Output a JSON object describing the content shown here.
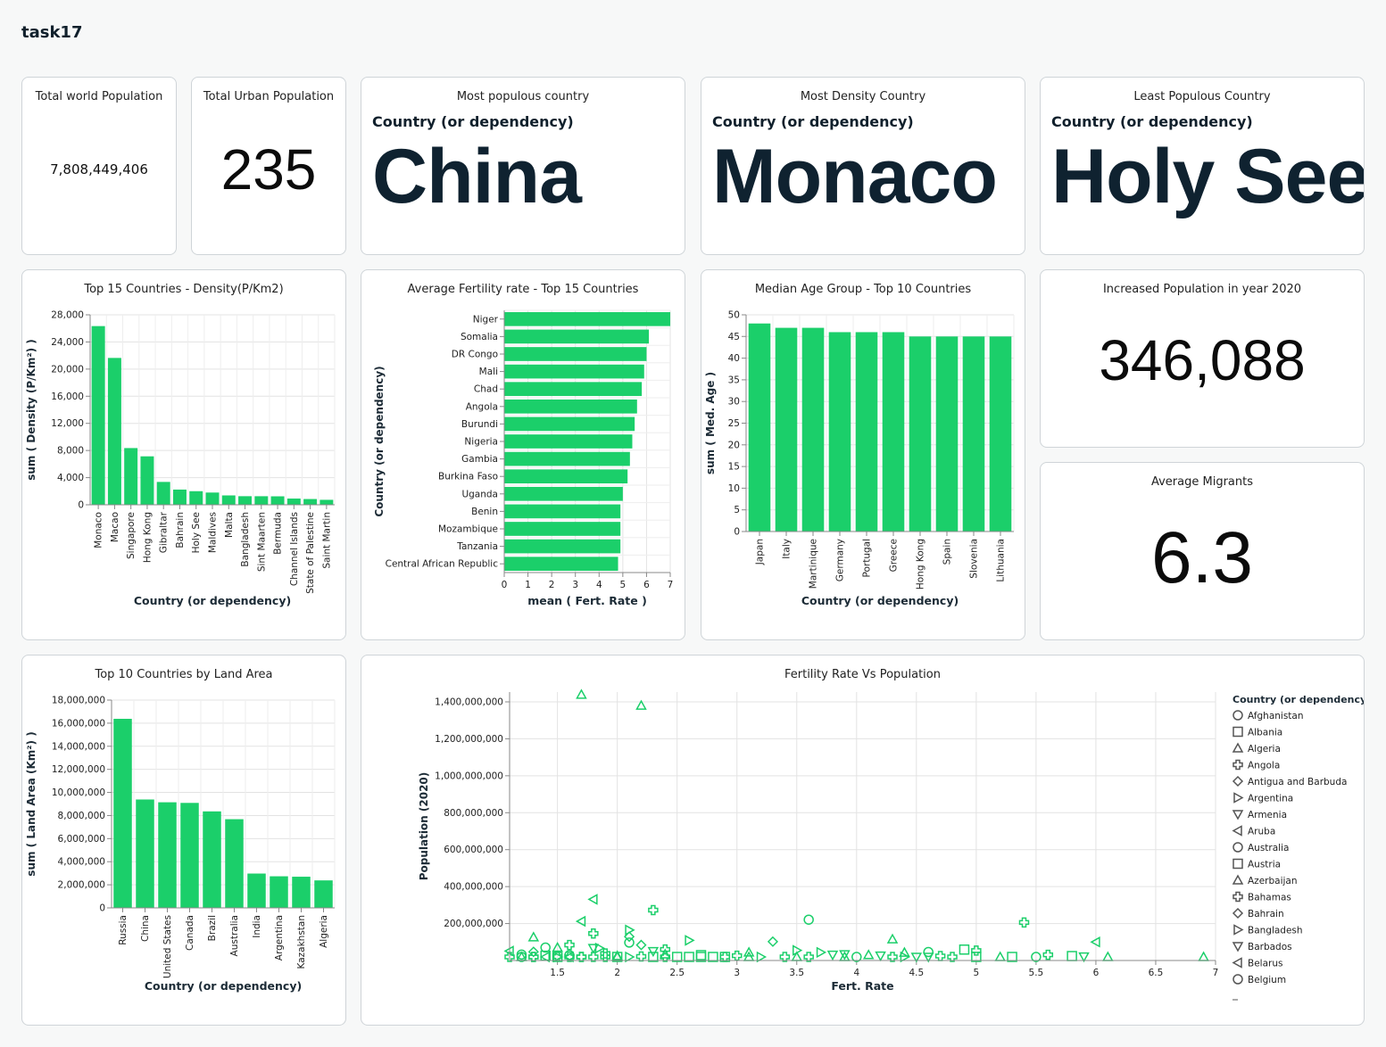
{
  "page": {
    "title": "task17",
    "accent": "#1bcf6a"
  },
  "kpis": {
    "world_population": {
      "title": "Total world Population",
      "value": "7,808,449,406"
    },
    "urban_population": {
      "title": "Total Urban Population",
      "value": "235"
    },
    "most_populous": {
      "title": "Most populous country",
      "field": "Country (or dependency)",
      "value": "China"
    },
    "most_dense": {
      "title": "Most Density Country",
      "field": "Country (or dependency)",
      "value": "Monaco"
    },
    "least_populous": {
      "title": "Least Populous Country",
      "field": "Country (or dependency)",
      "value": "Holy See"
    },
    "increased_population": {
      "title": "Increased Population in year 2020",
      "value": "346,088"
    },
    "average_migrants": {
      "title": "Average Migrants",
      "value": "6.3"
    }
  },
  "chart_data": [
    {
      "id": "density",
      "type": "bar",
      "title": "Top 15 Countries - Density(P/Km2)",
      "xlabel": "Country (or dependency)",
      "ylabel": "sum ( Density (P/Km²) )",
      "ylim": [
        0,
        28000
      ],
      "yticks": [
        0,
        4000,
        8000,
        12000,
        16000,
        20000,
        24000,
        28000
      ],
      "ytick_labels": [
        "0",
        "4,000",
        "8,000",
        "12,000",
        "16,000",
        "20,000",
        "24,000",
        "28,000"
      ],
      "categories": [
        "Monaco",
        "Macao",
        "Singapore",
        "Hong Kong",
        "Gibraltar",
        "Bahrain",
        "Holy See",
        "Maldives",
        "Malta",
        "Bangladesh",
        "Sint Maarten",
        "Bermuda",
        "Channel Islands",
        "State of Palestine",
        "Saint Martin"
      ],
      "values": [
        26337,
        21645,
        8358,
        7140,
        3369,
        2239,
        2003,
        1802,
        1380,
        1265,
        1261,
        1246,
        915,
        847,
        730
      ],
      "grid": true
    },
    {
      "id": "fertility",
      "type": "bar",
      "orientation": "horizontal",
      "title": "Average Fertility rate - Top 15 Countries",
      "xlabel": "mean ( Fert. Rate )",
      "ylabel": "Country (or dependency)",
      "xlim": [
        0,
        7
      ],
      "xticks": [
        0,
        1,
        2,
        3,
        4,
        5,
        6,
        7
      ],
      "categories": [
        "Niger",
        "Somalia",
        "DR Congo",
        "Mali",
        "Chad",
        "Angola",
        "Burundi",
        "Nigeria",
        "Gambia",
        "Burkina Faso",
        "Uganda",
        "Benin",
        "Mozambique",
        "Tanzania",
        "Central African Republic"
      ],
      "values": [
        7.0,
        6.1,
        6.0,
        5.9,
        5.8,
        5.6,
        5.5,
        5.4,
        5.3,
        5.2,
        5.0,
        4.9,
        4.9,
        4.9,
        4.8
      ],
      "grid": true
    },
    {
      "id": "median_age",
      "type": "bar",
      "title": "Median Age Group - Top 10  Countries",
      "xlabel": "Country (or dependency)",
      "ylabel": "sum ( Med. Age )",
      "ylim": [
        0,
        50
      ],
      "yticks": [
        0,
        5,
        10,
        15,
        20,
        25,
        30,
        35,
        40,
        45,
        50
      ],
      "categories": [
        "Japan",
        "Italy",
        "Martinique",
        "Germany",
        "Portugal",
        "Greece",
        "Hong Kong",
        "Spain",
        "Slovenia",
        "Lithuania"
      ],
      "values": [
        48,
        47,
        47,
        46,
        46,
        46,
        45,
        45,
        45,
        45
      ],
      "grid": true
    },
    {
      "id": "land_area",
      "type": "bar",
      "title": "Top 10 Countries by Land Area",
      "xlabel": "Country (or dependency)",
      "ylabel": "sum ( Land Area (Km²) )",
      "ylim": [
        0,
        18000000
      ],
      "yticks": [
        0,
        2000000,
        4000000,
        6000000,
        8000000,
        10000000,
        12000000,
        14000000,
        16000000,
        18000000
      ],
      "ytick_labels": [
        "0",
        "2,000,000",
        "4,000,000",
        "6,000,000",
        "8,000,000",
        "10,000,000",
        "12,000,000",
        "14,000,000",
        "16,000,000",
        "18,000,000"
      ],
      "categories": [
        "Russia",
        "China",
        "United States",
        "Canada",
        "Brazil",
        "Australia",
        "India",
        "Argentina",
        "Kazakhstan",
        "Algeria"
      ],
      "values": [
        16376870,
        9388211,
        9147420,
        9093510,
        8358140,
        7682300,
        2973190,
        2736690,
        2699700,
        2381740
      ],
      "grid": true
    },
    {
      "id": "fert_vs_pop",
      "type": "scatter",
      "title": "Fertility Rate Vs Population",
      "xlabel": "Fert. Rate",
      "ylabel": "Population (2020)",
      "xlim": [
        1.1,
        7.0
      ],
      "ylim": [
        0,
        1400000000
      ],
      "xticks": [
        1.5,
        2,
        2.5,
        3,
        3.5,
        4,
        4.5,
        5,
        5.5,
        6,
        6.5,
        7
      ],
      "xtick_labels": [
        "1.5",
        "2",
        "2.5",
        "3",
        "3.5",
        "4",
        "4.5",
        "5",
        "5.5",
        "6",
        "6.5",
        "7"
      ],
      "yticks": [
        200000000,
        400000000,
        600000000,
        800000000,
        1000000000,
        1200000000,
        1400000000
      ],
      "ytick_labels": [
        "200,000,000",
        "400,000,000",
        "600,000,000",
        "800,000,000",
        "1,000,000,000",
        "1,200,000,000",
        "1,400,000,000"
      ],
      "grid": true,
      "legend_position": "right",
      "legend_title": "Country (or dependency)",
      "legend": [
        {
          "name": "Afghanistan",
          "shape": "circle"
        },
        {
          "name": "Albania",
          "shape": "square"
        },
        {
          "name": "Algeria",
          "shape": "triangle-up"
        },
        {
          "name": "Angola",
          "shape": "cross"
        },
        {
          "name": "Antigua and Barbuda",
          "shape": "diamond"
        },
        {
          "name": "Argentina",
          "shape": "triangle-right"
        },
        {
          "name": "Armenia",
          "shape": "triangle-down"
        },
        {
          "name": "Aruba",
          "shape": "triangle-left"
        },
        {
          "name": "Australia",
          "shape": "circle"
        },
        {
          "name": "Austria",
          "shape": "square"
        },
        {
          "name": "Azerbaijan",
          "shape": "triangle-up"
        },
        {
          "name": "Bahamas",
          "shape": "cross"
        },
        {
          "name": "Bahrain",
          "shape": "diamond"
        },
        {
          "name": "Bangladesh",
          "shape": "triangle-right"
        },
        {
          "name": "Barbados",
          "shape": "triangle-down"
        },
        {
          "name": "Belarus",
          "shape": "triangle-left"
        },
        {
          "name": "Belgium",
          "shape": "circle"
        }
      ],
      "points": [
        {
          "x": 1.7,
          "y": 1439000000,
          "shape": "triangle-up"
        },
        {
          "x": 2.2,
          "y": 1380000000,
          "shape": "triangle-up"
        },
        {
          "x": 1.8,
          "y": 331000000,
          "shape": "triangle-left"
        },
        {
          "x": 2.3,
          "y": 273000000,
          "shape": "cross"
        },
        {
          "x": 3.6,
          "y": 221000000,
          "shape": "circle"
        },
        {
          "x": 5.4,
          "y": 206000000,
          "shape": "cross"
        },
        {
          "x": 1.7,
          "y": 212000000,
          "shape": "triangle-left"
        },
        {
          "x": 2.1,
          "y": 165000000,
          "shape": "triangle-right"
        },
        {
          "x": 1.8,
          "y": 146000000,
          "shape": "cross"
        },
        {
          "x": 2.1,
          "y": 129000000,
          "shape": "diamond"
        },
        {
          "x": 4.3,
          "y": 115000000,
          "shape": "triangle-up"
        },
        {
          "x": 6.0,
          "y": 100000000,
          "shape": "triangle-left"
        },
        {
          "x": 1.3,
          "y": 126000000,
          "shape": "triangle-up"
        },
        {
          "x": 2.6,
          "y": 109000000,
          "shape": "triangle-right"
        },
        {
          "x": 3.3,
          "y": 102000000,
          "shape": "diamond"
        },
        {
          "x": 2.1,
          "y": 97000000,
          "shape": "circle"
        },
        {
          "x": 1.6,
          "y": 84000000,
          "shape": "cross"
        },
        {
          "x": 2.2,
          "y": 84000000,
          "shape": "diamond"
        },
        {
          "x": 1.4,
          "y": 70000000,
          "shape": "circle"
        },
        {
          "x": 1.5,
          "y": 70000000,
          "shape": "triangle-up"
        },
        {
          "x": 1.8,
          "y": 67000000,
          "shape": "triangle-down"
        },
        {
          "x": 1.85,
          "y": 67000000,
          "shape": "triangle-right"
        },
        {
          "x": 4.9,
          "y": 59000000,
          "shape": "square"
        },
        {
          "x": 3.5,
          "y": 55000000,
          "shape": "triangle-right"
        },
        {
          "x": 5.0,
          "y": 54000000,
          "shape": "cross"
        },
        {
          "x": 2.4,
          "y": 60000000,
          "shape": "cross"
        },
        {
          "x": 1.1,
          "y": 51000000,
          "shape": "triangle-left"
        },
        {
          "x": 4.6,
          "y": 46000000,
          "shape": "circle"
        },
        {
          "x": 3.7,
          "y": 44000000,
          "shape": "triangle-right"
        },
        {
          "x": 1.3,
          "y": 47000000,
          "shape": "diamond"
        },
        {
          "x": 2.3,
          "y": 50000000,
          "shape": "triangle-down"
        },
        {
          "x": 4.4,
          "y": 43000000,
          "shape": "triangle-up"
        },
        {
          "x": 3.1,
          "y": 44000000,
          "shape": "triangle-up"
        },
        {
          "x": 1.9,
          "y": 38000000,
          "shape": "cross"
        },
        {
          "x": 3.9,
          "y": 33000000,
          "shape": "triangle-down"
        },
        {
          "x": 3.8,
          "y": 31000000,
          "shape": "triangle-down"
        },
        {
          "x": 4.1,
          "y": 30000000,
          "shape": "triangle-up"
        },
        {
          "x": 2.4,
          "y": 34000000,
          "shape": "triangle-up"
        },
        {
          "x": 2.7,
          "y": 29000000,
          "shape": "square"
        },
        {
          "x": 5.6,
          "y": 31000000,
          "shape": "cross"
        },
        {
          "x": 1.2,
          "y": 32000000,
          "shape": "circle"
        },
        {
          "x": 1.6,
          "y": 29000000,
          "shape": "circle"
        },
        {
          "x": 4.2,
          "y": 26000000,
          "shape": "triangle-down"
        },
        {
          "x": 2.0,
          "y": 25000000,
          "shape": "triangle-up"
        },
        {
          "x": 1.4,
          "y": 26000000,
          "shape": "square"
        },
        {
          "x": 3.0,
          "y": 26000000,
          "shape": "cross"
        },
        {
          "x": 4.7,
          "y": 24000000,
          "shape": "cross"
        },
        {
          "x": 5.8,
          "y": 24000000,
          "shape": "square"
        },
        {
          "x": 2.2,
          "y": 22000000,
          "shape": "cross"
        },
        {
          "x": 1.5,
          "y": 21000000,
          "shape": "cross"
        },
        {
          "x": 5.9,
          "y": 21000000,
          "shape": "triangle-down"
        },
        {
          "x": 2.0,
          "y": 20000000,
          "shape": "triangle-up"
        },
        {
          "x": 2.9,
          "y": 19000000,
          "shape": "cross"
        },
        {
          "x": 3.2,
          "y": 18000000,
          "shape": "triangle-right"
        },
        {
          "x": 5.3,
          "y": 17000000,
          "shape": "square"
        },
        {
          "x": 4.5,
          "y": 17000000,
          "shape": "triangle-down"
        },
        {
          "x": 6.1,
          "y": 16000000,
          "shape": "triangle-up"
        },
        {
          "x": 1.7,
          "y": 15000000,
          "shape": "cross"
        },
        {
          "x": 2.8,
          "y": 15000000,
          "shape": "square"
        },
        {
          "x": 4.0,
          "y": 14000000,
          "shape": "circle"
        },
        {
          "x": 5.2,
          "y": 13000000,
          "shape": "triangle-up"
        },
        {
          "x": 1.3,
          "y": 12000000,
          "shape": "cross"
        },
        {
          "x": 2.5,
          "y": 12000000,
          "shape": "square"
        },
        {
          "x": 3.6,
          "y": 11000000,
          "shape": "cross"
        },
        {
          "x": 4.8,
          "y": 11000000,
          "shape": "cross"
        },
        {
          "x": 1.2,
          "y": 10000000,
          "shape": "triangle-up"
        },
        {
          "x": 1.5,
          "y": 9000000,
          "shape": "square"
        },
        {
          "x": 1.6,
          "y": 8000000,
          "shape": "triangle-left"
        },
        {
          "x": 2.0,
          "y": 7000000,
          "shape": "square"
        },
        {
          "x": 2.4,
          "y": 7000000,
          "shape": "cross"
        },
        {
          "x": 3.4,
          "y": 6000000,
          "shape": "cross"
        },
        {
          "x": 1.4,
          "y": 6000000,
          "shape": "triangle-left"
        },
        {
          "x": 1.8,
          "y": 5000000,
          "shape": "cross"
        },
        {
          "x": 4.3,
          "y": 5000000,
          "shape": "cross"
        },
        {
          "x": 3.9,
          "y": 4000000,
          "shape": "triangle-up"
        },
        {
          "x": 5.5,
          "y": 4000000,
          "shape": "circle"
        },
        {
          "x": 1.6,
          "y": 3000000,
          "shape": "cross"
        },
        {
          "x": 2.1,
          "y": 3000000,
          "shape": "triangle-right"
        },
        {
          "x": 2.9,
          "y": 3000000,
          "shape": "square"
        },
        {
          "x": 3.5,
          "y": 3000000,
          "shape": "triangle-up"
        },
        {
          "x": 4.6,
          "y": 3000000,
          "shape": "triangle-down"
        },
        {
          "x": 5.0,
          "y": 3000000,
          "shape": "square"
        },
        {
          "x": 1.3,
          "y": 2000000,
          "shape": "cross"
        },
        {
          "x": 2.3,
          "y": 2000000,
          "shape": "square"
        },
        {
          "x": 3.1,
          "y": 2000000,
          "shape": "triangle-up"
        },
        {
          "x": 4.4,
          "y": 2000000,
          "shape": "triangle-right"
        },
        {
          "x": 6.9,
          "y": 2000000,
          "shape": "triangle-up"
        },
        {
          "x": 1.5,
          "y": 1000000,
          "shape": "triangle-right"
        },
        {
          "x": 1.9,
          "y": 1000000,
          "shape": "cross"
        },
        {
          "x": 2.7,
          "y": 1000000,
          "shape": "square"
        },
        {
          "x": 1.1,
          "y": 500000,
          "shape": "cross"
        },
        {
          "x": 2.6,
          "y": 500000,
          "shape": "square"
        },
        {
          "x": 1.7,
          "y": 300000,
          "shape": "cross"
        },
        {
          "x": 1.2,
          "y": 300000,
          "shape": "circle"
        }
      ]
    }
  ]
}
